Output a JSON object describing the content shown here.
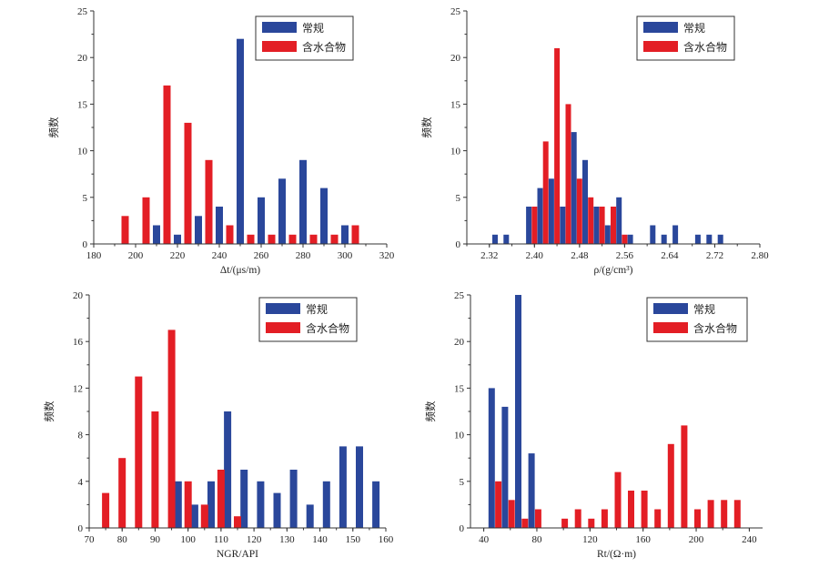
{
  "colors": {
    "series1": "#2a479b",
    "series2": "#e31e25",
    "axis": "#333333"
  },
  "chart_data": [
    {
      "type": "bar",
      "xlabel": "Δt/(μs/m)",
      "ylabel": "频数",
      "xlim": [
        180,
        320
      ],
      "ylim": [
        0,
        25
      ],
      "xticks": [
        180,
        200,
        220,
        240,
        260,
        280,
        300,
        320
      ],
      "yticks": [
        0,
        5,
        10,
        15,
        20,
        25
      ],
      "legend": "top-right",
      "series": [
        {
          "name": "常规",
          "color": "#2a479b",
          "x": [
            210,
            220,
            230,
            240,
            250,
            260,
            270,
            280,
            290,
            300
          ],
          "values": [
            2,
            1,
            3,
            4,
            22,
            5,
            7,
            9,
            6,
            2
          ]
        },
        {
          "name": "含水合物",
          "color": "#e31e25",
          "x": [
            195,
            205,
            215,
            225,
            235,
            245,
            255,
            265,
            275,
            285,
            295,
            305
          ],
          "values": [
            3,
            5,
            17,
            13,
            9,
            2,
            1,
            1,
            1,
            1,
            1,
            2
          ]
        }
      ]
    },
    {
      "type": "bar",
      "xlabel": "ρ/(g/cm³)",
      "ylabel": "频数",
      "xlim": [
        2.28,
        2.8
      ],
      "ylim": [
        0,
        25
      ],
      "xticks": [
        2.32,
        2.4,
        2.48,
        2.56,
        2.64,
        2.72,
        2.8
      ],
      "yticks": [
        0,
        5,
        10,
        15,
        20,
        25
      ],
      "legend": "top-right",
      "series": [
        {
          "name": "常规",
          "color": "#2a479b",
          "x": [
            2.33,
            2.35,
            2.39,
            2.41,
            2.43,
            2.45,
            2.47,
            2.49,
            2.51,
            2.53,
            2.55,
            2.57,
            2.61,
            2.63,
            2.65,
            2.69,
            2.71,
            2.73
          ],
          "values": [
            1,
            1,
            4,
            6,
            7,
            4,
            12,
            9,
            4,
            2,
            5,
            1,
            2,
            1,
            2,
            1,
            1,
            1
          ]
        },
        {
          "name": "含水合物",
          "color": "#e31e25",
          "x": [
            2.4,
            2.42,
            2.44,
            2.46,
            2.48,
            2.5,
            2.52,
            2.54,
            2.56
          ],
          "values": [
            4,
            11,
            21,
            15,
            7,
            5,
            4,
            4,
            1
          ]
        }
      ]
    },
    {
      "type": "bar",
      "xlabel": "NGR/API",
      "ylabel": "频数",
      "xlim": [
        70,
        160
      ],
      "ylim": [
        0,
        20
      ],
      "xticks": [
        70,
        80,
        90,
        100,
        110,
        120,
        130,
        140,
        150,
        160
      ],
      "yticks": [
        0,
        4,
        8,
        12,
        16,
        20
      ],
      "legend": "top-right",
      "series": [
        {
          "name": "常规",
          "color": "#2a479b",
          "x": [
            97,
            102,
            107,
            112,
            117,
            122,
            127,
            132,
            137,
            142,
            147,
            152,
            157
          ],
          "values": [
            4,
            2,
            4,
            10,
            5,
            4,
            3,
            5,
            2,
            4,
            7,
            7,
            4
          ]
        },
        {
          "name": "含水合物",
          "color": "#e31e25",
          "x": [
            75,
            80,
            85,
            90,
            95,
            100,
            105,
            110,
            115
          ],
          "values": [
            3,
            6,
            13,
            10,
            17,
            4,
            2,
            5,
            1
          ]
        }
      ]
    },
    {
      "type": "bar",
      "xlabel": "Rt/(Ω·m)",
      "ylabel": "频数",
      "xlim": [
        30,
        250
      ],
      "ylim": [
        0,
        25
      ],
      "xticks": [
        40,
        80,
        120,
        160,
        200,
        240
      ],
      "yticks": [
        0,
        5,
        10,
        15,
        20,
        25
      ],
      "legend": "top-right",
      "series": [
        {
          "name": "常规",
          "color": "#2a479b",
          "x": [
            46,
            56,
            66,
            76
          ],
          "values": [
            15,
            13,
            25,
            8
          ]
        },
        {
          "name": "含水合物",
          "color": "#e31e25",
          "x": [
            51,
            61,
            71,
            81,
            101,
            111,
            121,
            131,
            141,
            151,
            161,
            171,
            181,
            191,
            201,
            211,
            221,
            231
          ],
          "values": [
            5,
            3,
            1,
            2,
            1,
            2,
            1,
            2,
            6,
            4,
            4,
            2,
            9,
            11,
            2,
            3,
            3,
            3
          ]
        }
      ]
    }
  ]
}
